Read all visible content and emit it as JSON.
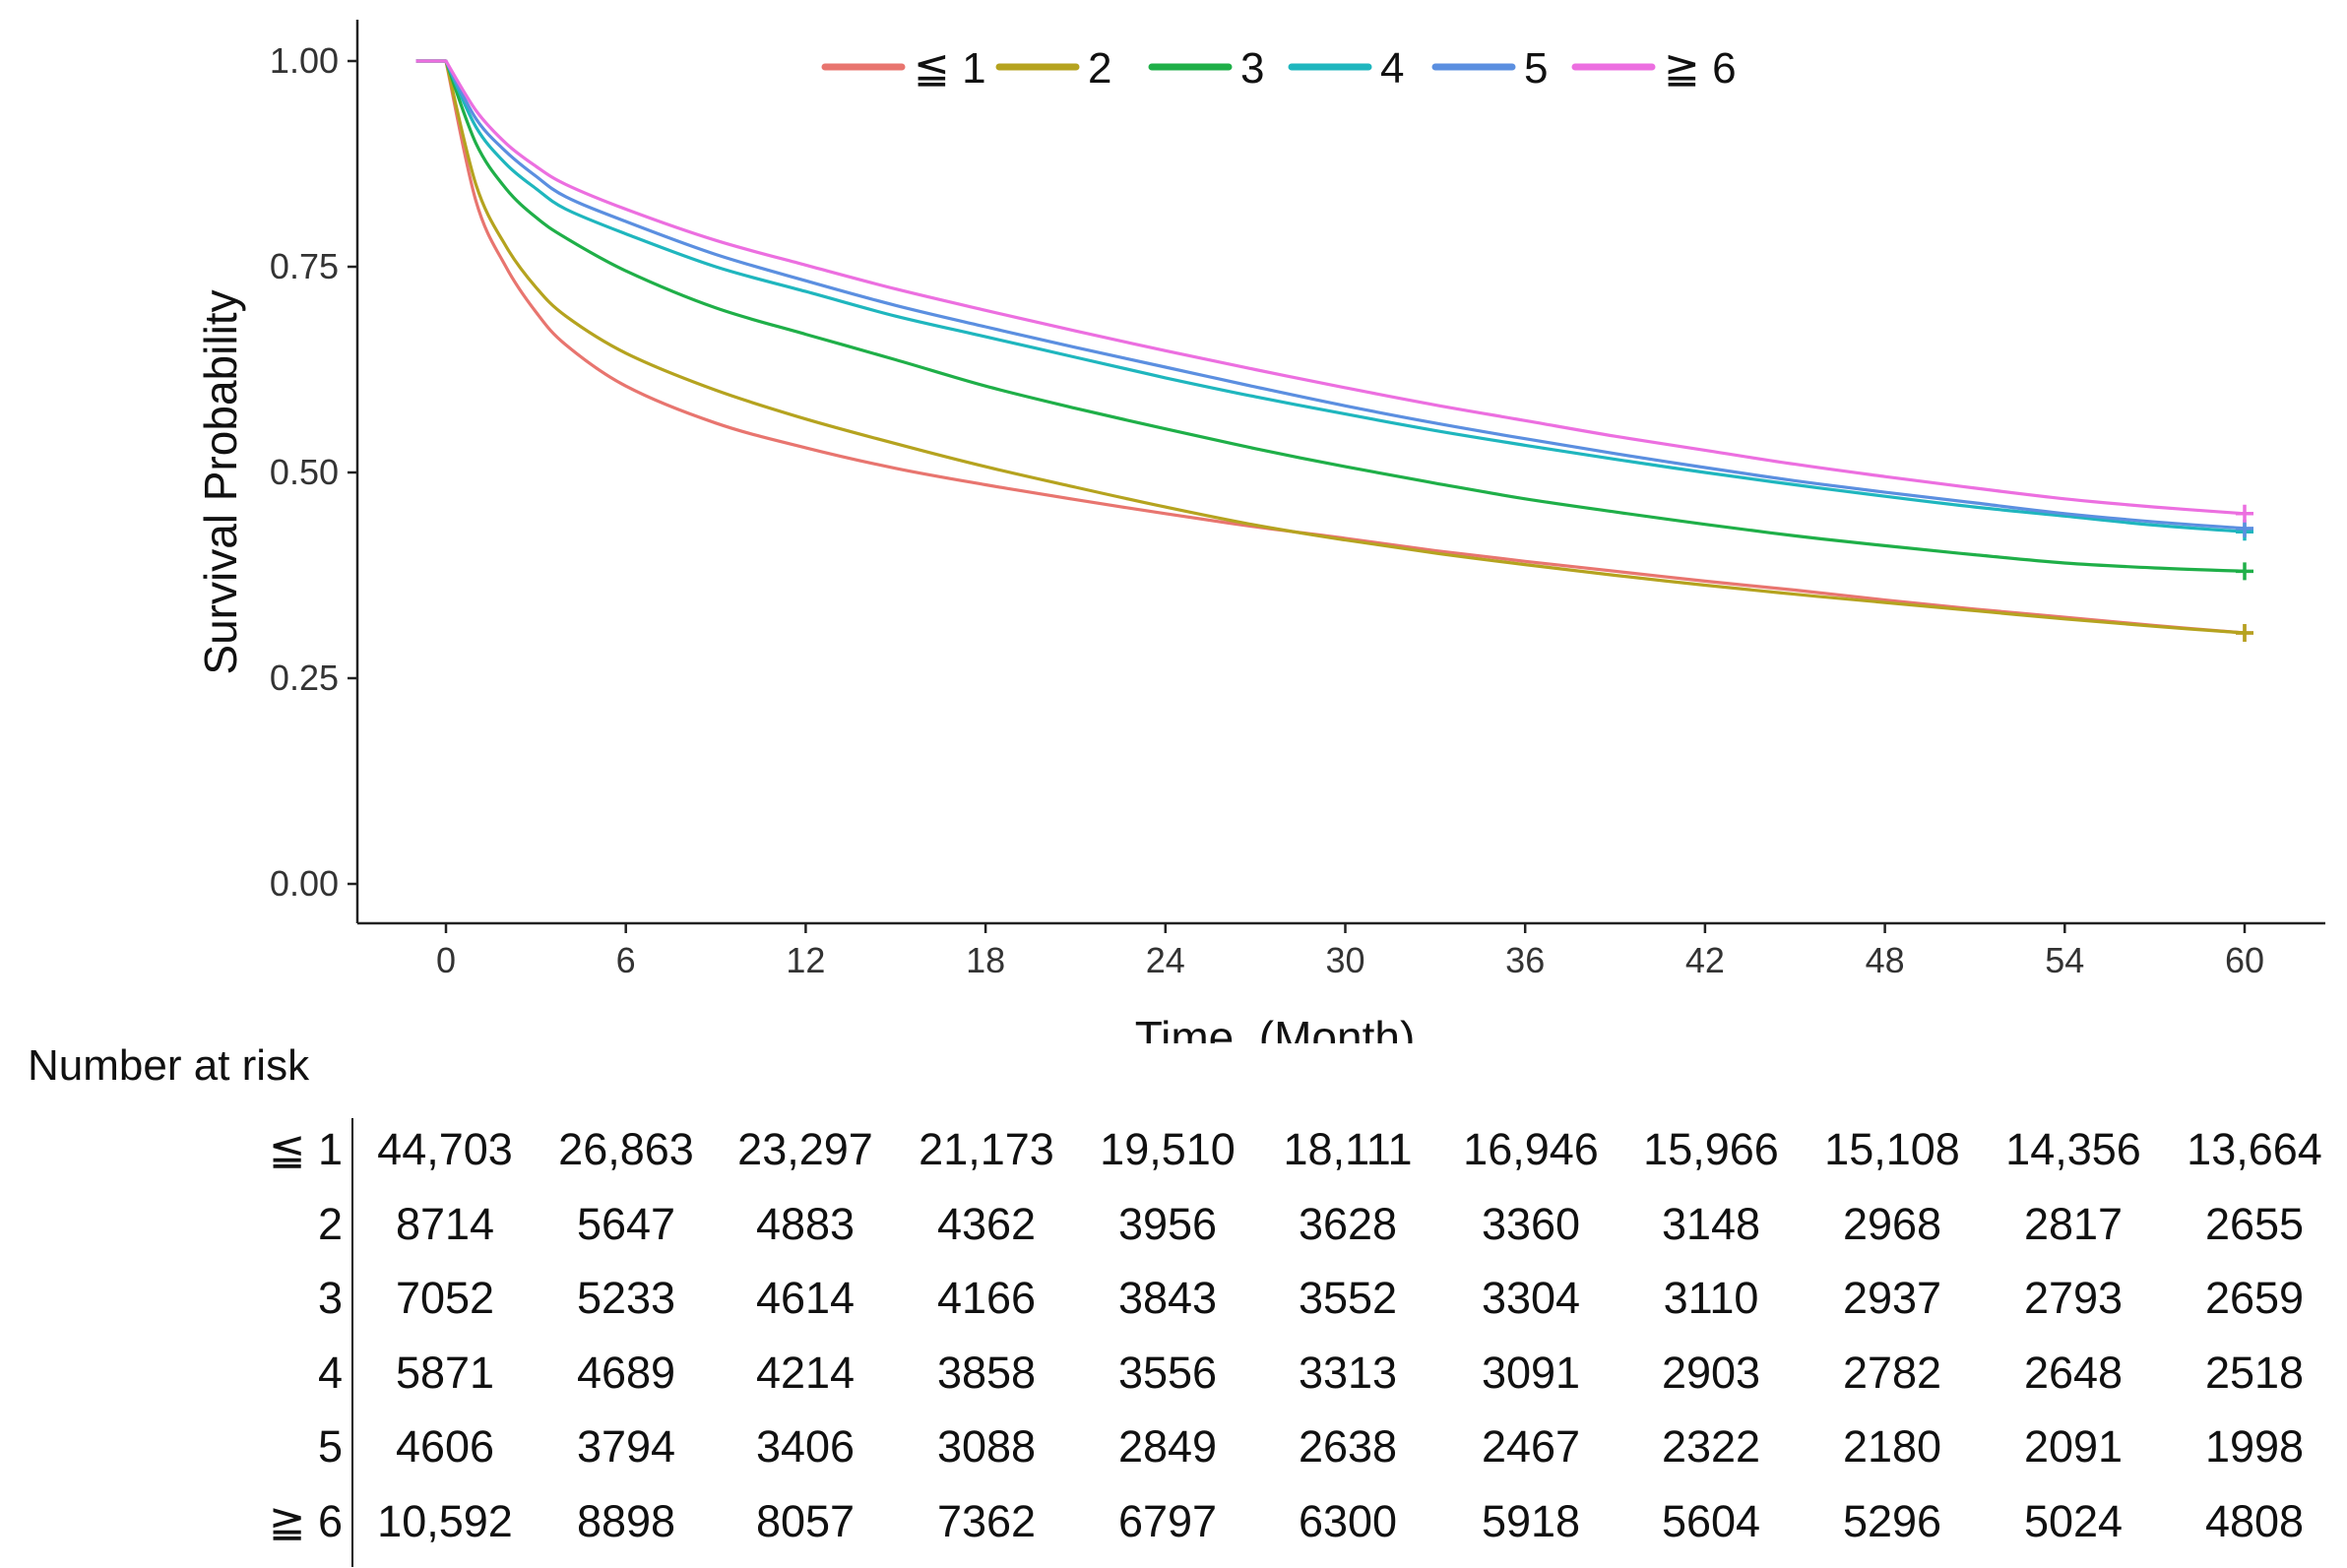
{
  "chart_data": {
    "type": "line",
    "title": "",
    "xlabel": "Time  (Month)",
    "ylabel": "Survival Probability",
    "xlim": [
      -3,
      63
    ],
    "ylim": [
      -0.05,
      1.05
    ],
    "x_ticks": [
      0,
      6,
      12,
      18,
      24,
      30,
      36,
      42,
      48,
      54,
      60
    ],
    "x_tick_labels": [
      "0",
      "6",
      "12",
      "18",
      "24",
      "30",
      "36",
      "42",
      "48",
      "54",
      "60"
    ],
    "y_ticks": [
      0,
      0.25,
      0.5,
      0.75,
      1.0
    ],
    "y_tick_labels": [
      "0.00",
      "0.25",
      "0.50",
      "0.75",
      "1.00"
    ],
    "grid": false,
    "legend_position": "top",
    "x": [
      -1,
      0,
      1,
      2,
      3,
      4,
      6,
      9,
      12,
      15,
      18,
      21,
      24,
      27,
      30,
      33,
      36,
      39,
      42,
      45,
      48,
      51,
      54,
      57,
      60
    ],
    "series": [
      {
        "name": "≦ 1",
        "color": "#E8756F",
        "values": [
          1,
          1,
          0.83,
          0.75,
          0.695,
          0.655,
          0.605,
          0.56,
          0.53,
          0.505,
          0.485,
          0.467,
          0.45,
          0.434,
          0.42,
          0.405,
          0.392,
          0.38,
          0.368,
          0.357,
          0.345,
          0.334,
          0.324,
          0.314,
          0.305
        ]
      },
      {
        "name": "2",
        "color": "#B5A31F",
        "values": [
          1,
          1,
          0.85,
          0.775,
          0.725,
          0.69,
          0.645,
          0.6,
          0.565,
          0.535,
          0.507,
          0.482,
          0.458,
          0.436,
          0.418,
          0.402,
          0.388,
          0.375,
          0.363,
          0.352,
          0.342,
          0.332,
          0.322,
          0.313,
          0.305
        ]
      },
      {
        "name": "3",
        "color": "#1FAF48",
        "values": [
          1,
          1,
          0.9,
          0.845,
          0.81,
          0.785,
          0.745,
          0.7,
          0.668,
          0.637,
          0.605,
          0.578,
          0.553,
          0.529,
          0.507,
          0.487,
          0.468,
          0.452,
          0.437,
          0.423,
          0.411,
          0.4,
          0.39,
          0.384,
          0.38
        ]
      },
      {
        "name": "4",
        "color": "#1FB6BE",
        "values": [
          1,
          1,
          0.92,
          0.875,
          0.845,
          0.82,
          0.79,
          0.75,
          0.72,
          0.69,
          0.665,
          0.64,
          0.615,
          0.592,
          0.571,
          0.551,
          0.533,
          0.516,
          0.5,
          0.485,
          0.471,
          0.458,
          0.447,
          0.436,
          0.428
        ]
      },
      {
        "name": "5",
        "color": "#5B8FE0",
        "values": [
          1,
          1,
          0.93,
          0.89,
          0.86,
          0.835,
          0.805,
          0.765,
          0.733,
          0.703,
          0.677,
          0.652,
          0.628,
          0.604,
          0.581,
          0.56,
          0.541,
          0.523,
          0.506,
          0.49,
          0.476,
          0.463,
          0.45,
          0.44,
          0.432
        ]
      },
      {
        "name": "≧ 6",
        "color": "#EC6FE0",
        "values": [
          1,
          1,
          0.94,
          0.9,
          0.872,
          0.85,
          0.82,
          0.782,
          0.752,
          0.723,
          0.697,
          0.672,
          0.648,
          0.625,
          0.603,
          0.582,
          0.563,
          0.544,
          0.527,
          0.51,
          0.495,
          0.481,
          0.468,
          0.458,
          0.45
        ]
      }
    ]
  },
  "risk_table": {
    "title": "Number at risk",
    "times": [
      0,
      6,
      12,
      18,
      24,
      30,
      36,
      42,
      48,
      54,
      60
    ],
    "rows": [
      {
        "label": "≦ 1",
        "values": [
          "44,703",
          "26,863",
          "23,297",
          "21,173",
          "19,510",
          "18,111",
          "16,946",
          "15,966",
          "15,108",
          "14,356",
          "13,664"
        ]
      },
      {
        "label": "2",
        "values": [
          "8714",
          "5647",
          "4883",
          "4362",
          "3956",
          "3628",
          "3360",
          "3148",
          "2968",
          "2817",
          "2655"
        ]
      },
      {
        "label": "3",
        "values": [
          "7052",
          "5233",
          "4614",
          "4166",
          "3843",
          "3552",
          "3304",
          "3110",
          "2937",
          "2793",
          "2659"
        ]
      },
      {
        "label": "4",
        "values": [
          "5871",
          "4689",
          "4214",
          "3858",
          "3556",
          "3313",
          "3091",
          "2903",
          "2782",
          "2648",
          "2518"
        ]
      },
      {
        "label": "5",
        "values": [
          "4606",
          "3794",
          "3406",
          "3088",
          "2849",
          "2638",
          "2467",
          "2322",
          "2180",
          "2091",
          "1998"
        ]
      },
      {
        "label": "≧ 6",
        "values": [
          "10,592",
          "8898",
          "8057",
          "7362",
          "6797",
          "6300",
          "5918",
          "5604",
          "5296",
          "5024",
          "4808"
        ]
      }
    ]
  }
}
